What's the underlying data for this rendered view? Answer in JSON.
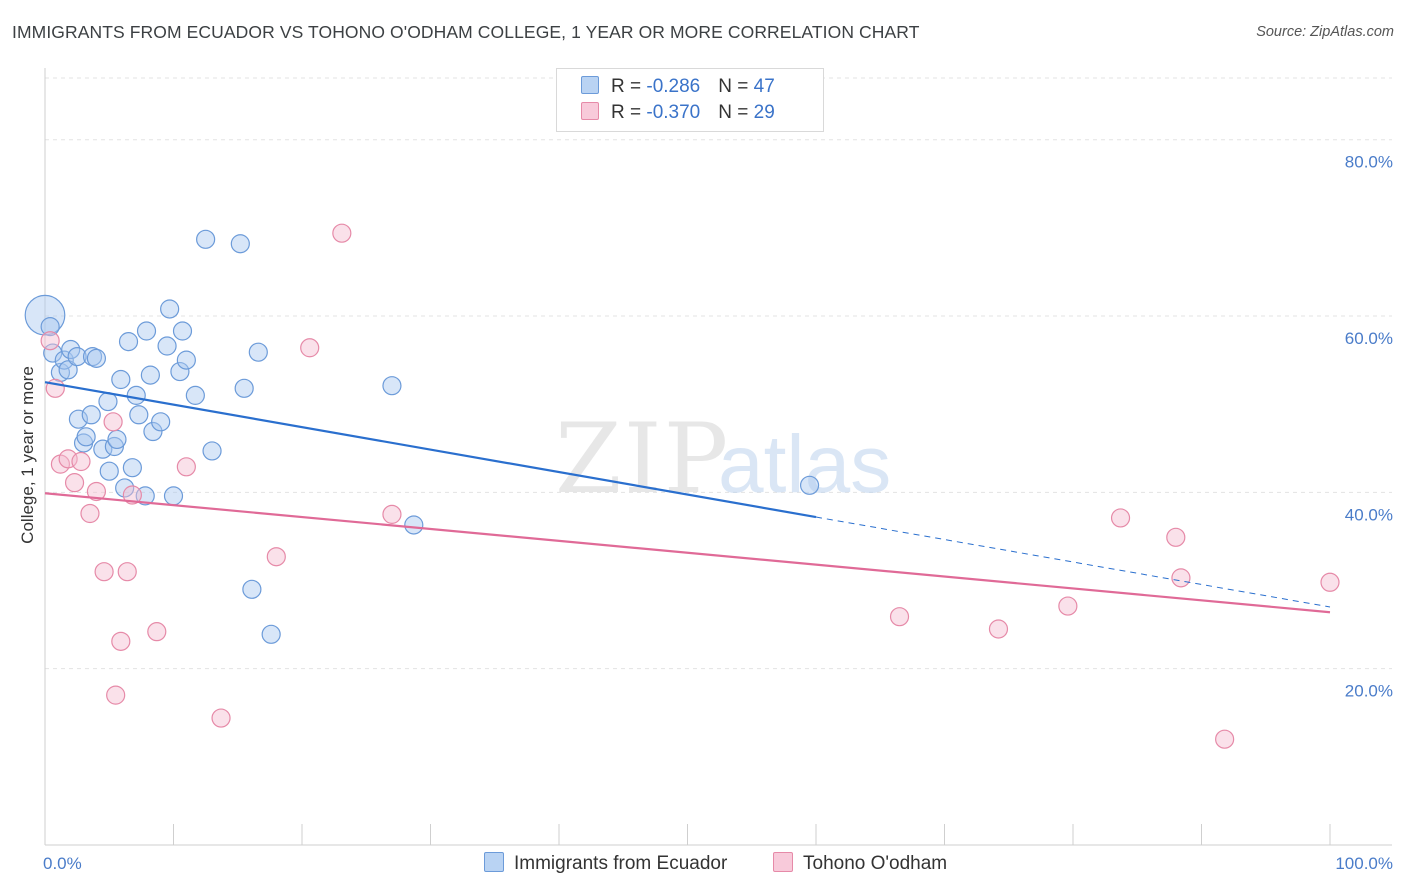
{
  "title": "IMMIGRANTS FROM ECUADOR VS TOHONO O'ODHAM COLLEGE, 1 YEAR OR MORE CORRELATION CHART",
  "source": "Source: ZipAtlas.com",
  "watermark": {
    "zip": "ZIP",
    "atlas": "atlas"
  },
  "legend_top": [
    {
      "r_label": "R = ",
      "r_value": "-0.286",
      "n_label": "N = ",
      "n_value": "47"
    },
    {
      "r_label": "R = ",
      "r_value": "-0.370",
      "n_label": "N = ",
      "n_value": "29"
    }
  ],
  "chart_data": {
    "type": "scatter",
    "title": "IMMIGRANTS FROM ECUADOR VS TOHONO O'ODHAM COLLEGE, 1 YEAR OR MORE CORRELATION CHART",
    "xlabel": "",
    "ylabel": "College, 1 year or more",
    "xlim": [
      0,
      100
    ],
    "ylim": [
      0,
      87
    ],
    "x_tick_labels": [
      "0.0%",
      "100.0%"
    ],
    "y_ticks": [
      20,
      40,
      60,
      80
    ],
    "y_tick_labels": [
      "20.0%",
      "40.0%",
      "60.0%",
      "80.0%"
    ],
    "grid": true,
    "legend_position": "bottom",
    "colors": {
      "blue_fill": "#a9c8f0",
      "blue_stroke": "#6c9bd9",
      "blue_line": "#2a6fce",
      "pink_fill": "#f5bcd0",
      "pink_stroke": "#e68aa8",
      "pink_line": "#e06a97"
    },
    "series": [
      {
        "name": "Immigrants from Ecuador",
        "color": "#a9c8f0",
        "points": [
          [
            0.0,
            60.1,
            2.2
          ],
          [
            0.4,
            58.8,
            1
          ],
          [
            0.6,
            55.8,
            1
          ],
          [
            1.2,
            53.6,
            1
          ],
          [
            1.5,
            55.0,
            1
          ],
          [
            1.8,
            53.9,
            1
          ],
          [
            2.0,
            56.2,
            1
          ],
          [
            2.5,
            55.4,
            1
          ],
          [
            2.6,
            48.3,
            1
          ],
          [
            3.0,
            45.6,
            1
          ],
          [
            3.2,
            46.3,
            1
          ],
          [
            3.6,
            48.8,
            1
          ],
          [
            3.7,
            55.4,
            1
          ],
          [
            4.0,
            55.2,
            1
          ],
          [
            4.5,
            44.9,
            1
          ],
          [
            4.9,
            50.3,
            1
          ],
          [
            5.0,
            42.4,
            1
          ],
          [
            5.4,
            45.2,
            1
          ],
          [
            5.6,
            46.0,
            1
          ],
          [
            5.9,
            52.8,
            1
          ],
          [
            6.2,
            40.5,
            1
          ],
          [
            6.5,
            57.1,
            1
          ],
          [
            6.8,
            42.8,
            1
          ],
          [
            7.1,
            51.0,
            1
          ],
          [
            7.3,
            48.8,
            1
          ],
          [
            7.8,
            39.6,
            1
          ],
          [
            7.9,
            58.3,
            1
          ],
          [
            8.2,
            53.3,
            1
          ],
          [
            8.4,
            46.9,
            1
          ],
          [
            9.0,
            48.0,
            1
          ],
          [
            9.5,
            56.6,
            1
          ],
          [
            9.7,
            60.8,
            1
          ],
          [
            10.0,
            39.6,
            1
          ],
          [
            10.5,
            53.7,
            1
          ],
          [
            10.7,
            58.3,
            1
          ],
          [
            11.0,
            55.0,
            1
          ],
          [
            11.7,
            51.0,
            1
          ],
          [
            12.5,
            68.7,
            1
          ],
          [
            13.0,
            44.7,
            1
          ],
          [
            15.2,
            68.2,
            1
          ],
          [
            15.5,
            51.8,
            1
          ],
          [
            16.1,
            29.0,
            1
          ],
          [
            16.6,
            55.9,
            1
          ],
          [
            17.6,
            23.9,
            1
          ],
          [
            27.0,
            52.1,
            1
          ],
          [
            28.7,
            36.3,
            1
          ],
          [
            59.5,
            40.8,
            1
          ]
        ]
      },
      {
        "name": "Tohono O'odham",
        "color": "#f5bcd0",
        "points": [
          [
            0.4,
            57.2,
            1
          ],
          [
            0.8,
            51.8,
            1
          ],
          [
            1.2,
            43.2,
            1
          ],
          [
            1.8,
            43.8,
            1
          ],
          [
            2.3,
            41.1,
            1
          ],
          [
            2.8,
            43.5,
            1
          ],
          [
            3.5,
            37.6,
            1
          ],
          [
            4.0,
            40.1,
            1
          ],
          [
            4.6,
            31.0,
            1
          ],
          [
            5.3,
            48.0,
            1
          ],
          [
            5.5,
            17.0,
            1
          ],
          [
            5.9,
            23.1,
            1
          ],
          [
            6.4,
            31.0,
            1
          ],
          [
            6.8,
            39.7,
            1
          ],
          [
            8.7,
            24.2,
            1
          ],
          [
            11.0,
            42.9,
            1
          ],
          [
            13.7,
            14.4,
            1
          ],
          [
            18.0,
            32.7,
            1
          ],
          [
            20.6,
            56.4,
            1
          ],
          [
            23.1,
            69.4,
            1
          ],
          [
            27.0,
            37.5,
            1
          ],
          [
            66.5,
            25.9,
            1
          ],
          [
            74.2,
            24.5,
            1
          ],
          [
            79.6,
            27.1,
            1
          ],
          [
            83.7,
            37.1,
            1
          ],
          [
            88.0,
            34.9,
            1
          ],
          [
            88.4,
            30.3,
            1
          ],
          [
            91.8,
            12.0,
            1
          ],
          [
            100.0,
            29.8,
            1
          ]
        ]
      }
    ],
    "trendlines": [
      {
        "series": "Immigrants from Ecuador",
        "x0": 0,
        "y0": 52.5,
        "x1": 60,
        "y1": 37.2,
        "dash_to_x": 100,
        "dash_to_y": 27.0
      },
      {
        "series": "Tohono O'odham",
        "x0": 0,
        "y0": 39.9,
        "x1": 100,
        "y1": 26.4
      }
    ]
  }
}
